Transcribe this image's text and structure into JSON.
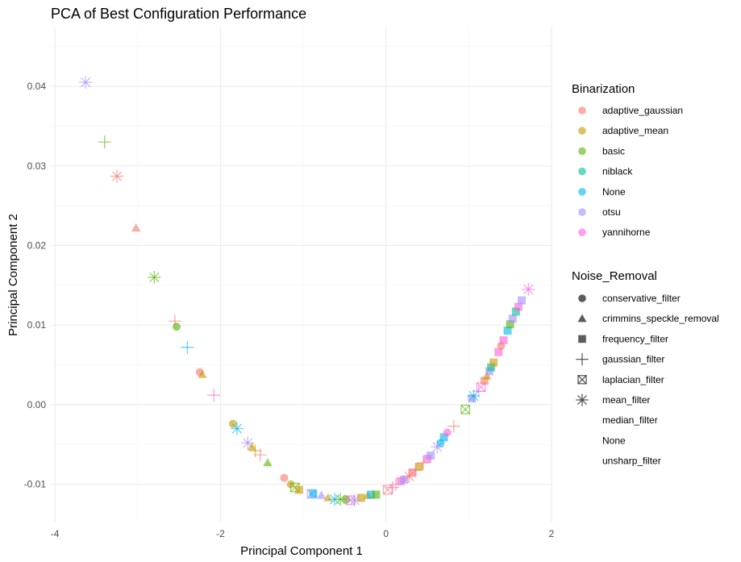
{
  "chart_data": {
    "type": "scatter",
    "title": "PCA of Best Configuration Performance",
    "xlabel": "Principal Component 1",
    "ylabel": "Principal Component 2",
    "xlim": [
      -4.05,
      2.0
    ],
    "ylim": [
      -0.0148,
      0.0475
    ],
    "x_ticks": [
      -4,
      -2,
      0,
      2
    ],
    "x_tick_labels": [
      "-4",
      "-2",
      "0",
      "2"
    ],
    "y_ticks": [
      -0.01,
      0.0,
      0.01,
      0.02,
      0.03,
      0.04
    ],
    "y_tick_labels": [
      "-0.01",
      "0.00",
      "0.01",
      "0.02",
      "0.03",
      "0.04"
    ],
    "grid": true,
    "legend_position": "right",
    "color_legend": {
      "title": "Binarization",
      "items": [
        {
          "label": "adaptive_gaussian",
          "color": "#F8766D"
        },
        {
          "label": "adaptive_mean",
          "color": "#C49A00"
        },
        {
          "label": "basic",
          "color": "#53B400"
        },
        {
          "label": "niblack",
          "color": "#00C094"
        },
        {
          "label": "None",
          "color": "#00B6EB"
        },
        {
          "label": "otsu",
          "color": "#A58AFF"
        },
        {
          "label": "yannihorne",
          "color": "#FB61D7"
        }
      ]
    },
    "shape_legend": {
      "title": "Noise_Removal",
      "items": [
        {
          "label": "conservative_filter",
          "shape": "circle"
        },
        {
          "label": "crimmins_speckle_removal",
          "shape": "triangle"
        },
        {
          "label": "frequency_filter",
          "shape": "square"
        },
        {
          "label": "gaussian_filter",
          "shape": "plus"
        },
        {
          "label": "laplacian_filter",
          "shape": "boxcross"
        },
        {
          "label": "mean_filter",
          "shape": "asterisk"
        },
        {
          "label": "median_filter",
          "shape": "none"
        },
        {
          "label": "None",
          "shape": "none"
        },
        {
          "label": "unsharp_filter",
          "shape": "none"
        }
      ]
    },
    "points": [
      {
        "x": -3.63,
        "y": 0.0405,
        "b": "otsu",
        "n": "mean_filter"
      },
      {
        "x": -3.4,
        "y": 0.033,
        "b": "basic",
        "n": "gaussian_filter"
      },
      {
        "x": -3.25,
        "y": 0.0287,
        "b": "adaptive_gaussian",
        "n": "mean_filter"
      },
      {
        "x": -3.02,
        "y": 0.0222,
        "b": "adaptive_gaussian",
        "n": "crimmins_speckle_removal"
      },
      {
        "x": -2.8,
        "y": 0.016,
        "b": "basic",
        "n": "mean_filter"
      },
      {
        "x": -2.55,
        "y": 0.0105,
        "b": "adaptive_gaussian",
        "n": "gaussian_filter"
      },
      {
        "x": -2.53,
        "y": 0.0098,
        "b": "basic",
        "n": "conservative_filter"
      },
      {
        "x": -2.4,
        "y": 0.0072,
        "b": "None",
        "n": "gaussian_filter"
      },
      {
        "x": -2.25,
        "y": 0.0041,
        "b": "adaptive_gaussian",
        "n": "conservative_filter"
      },
      {
        "x": -2.22,
        "y": 0.0038,
        "b": "adaptive_mean",
        "n": "crimmins_speckle_removal"
      },
      {
        "x": -2.08,
        "y": 0.0012,
        "b": "yannihorne",
        "n": "gaussian_filter"
      },
      {
        "x": -1.85,
        "y": -0.0024,
        "b": "adaptive_mean",
        "n": "conservative_filter"
      },
      {
        "x": -1.8,
        "y": -0.003,
        "b": "None",
        "n": "mean_filter"
      },
      {
        "x": -1.67,
        "y": -0.0048,
        "b": "otsu",
        "n": "mean_filter"
      },
      {
        "x": -1.62,
        "y": -0.0053,
        "b": "adaptive_mean",
        "n": "crimmins_speckle_removal"
      },
      {
        "x": -1.58,
        "y": -0.0058,
        "b": "adaptive_mean",
        "n": "gaussian_filter"
      },
      {
        "x": -1.52,
        "y": -0.0063,
        "b": "adaptive_gaussian",
        "n": "gaussian_filter"
      },
      {
        "x": -1.43,
        "y": -0.0073,
        "b": "basic",
        "n": "crimmins_speckle_removal"
      },
      {
        "x": -1.23,
        "y": -0.0092,
        "b": "adaptive_gaussian",
        "n": "conservative_filter"
      },
      {
        "x": -1.15,
        "y": -0.01,
        "b": "adaptive_mean",
        "n": "conservative_filter"
      },
      {
        "x": -1.1,
        "y": -0.0104,
        "b": "basic",
        "n": "laplacian_filter"
      },
      {
        "x": -1.05,
        "y": -0.0107,
        "b": "adaptive_mean",
        "n": "frequency_filter"
      },
      {
        "x": -0.9,
        "y": -0.0112,
        "b": "otsu",
        "n": "laplacian_filter"
      },
      {
        "x": -0.88,
        "y": -0.0112,
        "b": "None",
        "n": "frequency_filter"
      },
      {
        "x": -0.78,
        "y": -0.0114,
        "b": "otsu",
        "n": "crimmins_speckle_removal"
      },
      {
        "x": -0.7,
        "y": -0.0117,
        "b": "adaptive_mean",
        "n": "crimmins_speckle_removal"
      },
      {
        "x": -0.62,
        "y": -0.0119,
        "b": "None",
        "n": "mean_filter"
      },
      {
        "x": -0.55,
        "y": -0.0119,
        "b": "basic",
        "n": "mean_filter"
      },
      {
        "x": -0.48,
        "y": -0.0119,
        "b": "basic",
        "n": "conservative_filter"
      },
      {
        "x": -0.43,
        "y": -0.012,
        "b": "yannihorne",
        "n": "laplacian_filter"
      },
      {
        "x": -0.38,
        "y": -0.012,
        "b": "otsu",
        "n": "mean_filter"
      },
      {
        "x": -0.3,
        "y": -0.0117,
        "b": "adaptive_mean",
        "n": "frequency_filter"
      },
      {
        "x": -0.22,
        "y": -0.0114,
        "b": "adaptive_mean",
        "n": "crimmins_speckle_removal"
      },
      {
        "x": -0.18,
        "y": -0.0113,
        "b": "None",
        "n": "frequency_filter"
      },
      {
        "x": -0.12,
        "y": -0.0113,
        "b": "basic",
        "n": "frequency_filter"
      },
      {
        "x": 0.02,
        "y": -0.0107,
        "b": "adaptive_gaussian",
        "n": "laplacian_filter"
      },
      {
        "x": 0.08,
        "y": -0.0104,
        "b": "yannihorne",
        "n": "gaussian_filter"
      },
      {
        "x": 0.12,
        "y": -0.01,
        "b": "adaptive_gaussian",
        "n": "gaussian_filter"
      },
      {
        "x": 0.18,
        "y": -0.0096,
        "b": "yannihorne",
        "n": "frequency_filter"
      },
      {
        "x": 0.22,
        "y": -0.0094,
        "b": "otsu",
        "n": "frequency_filter"
      },
      {
        "x": 0.28,
        "y": -0.009,
        "b": "adaptive_gaussian",
        "n": "mean_filter"
      },
      {
        "x": 0.32,
        "y": -0.0085,
        "b": "adaptive_gaussian",
        "n": "frequency_filter"
      },
      {
        "x": 0.36,
        "y": -0.0082,
        "b": "yannihorne",
        "n": "gaussian_filter"
      },
      {
        "x": 0.4,
        "y": -0.0078,
        "b": "adaptive_mean",
        "n": "frequency_filter"
      },
      {
        "x": 0.45,
        "y": -0.0073,
        "b": "adaptive_gaussian",
        "n": "gaussian_filter"
      },
      {
        "x": 0.5,
        "y": -0.0068,
        "b": "yannihorne",
        "n": "frequency_filter"
      },
      {
        "x": 0.54,
        "y": -0.0064,
        "b": "otsu",
        "n": "frequency_filter"
      },
      {
        "x": 0.62,
        "y": -0.0053,
        "b": "otsu",
        "n": "mean_filter"
      },
      {
        "x": 0.66,
        "y": -0.0048,
        "b": "None",
        "n": "conservative_filter"
      },
      {
        "x": 0.7,
        "y": -0.0041,
        "b": "None",
        "n": "frequency_filter"
      },
      {
        "x": 0.74,
        "y": -0.0035,
        "b": "yannihorne",
        "n": "conservative_filter"
      },
      {
        "x": 0.82,
        "y": -0.0027,
        "b": "adaptive_gaussian",
        "n": "gaussian_filter"
      },
      {
        "x": 0.96,
        "y": -0.0006,
        "b": "basic",
        "n": "laplacian_filter"
      },
      {
        "x": 1.04,
        "y": 0.0008,
        "b": "otsu",
        "n": "frequency_filter"
      },
      {
        "x": 1.06,
        "y": 0.0011,
        "b": "None",
        "n": "mean_filter"
      },
      {
        "x": 1.12,
        "y": 0.0017,
        "b": "otsu",
        "n": "gaussian_filter"
      },
      {
        "x": 1.15,
        "y": 0.0022,
        "b": "yannihorne",
        "n": "laplacian_filter"
      },
      {
        "x": 1.19,
        "y": 0.003,
        "b": "adaptive_gaussian",
        "n": "frequency_filter"
      },
      {
        "x": 1.22,
        "y": 0.0036,
        "b": "adaptive_mean",
        "n": "crimmins_speckle_removal"
      },
      {
        "x": 1.25,
        "y": 0.0042,
        "b": "otsu",
        "n": "frequency_filter"
      },
      {
        "x": 1.27,
        "y": 0.0047,
        "b": "niblack",
        "n": "frequency_filter"
      },
      {
        "x": 1.3,
        "y": 0.0053,
        "b": "adaptive_mean",
        "n": "frequency_filter"
      },
      {
        "x": 1.36,
        "y": 0.0066,
        "b": "yannihorne",
        "n": "frequency_filter"
      },
      {
        "x": 1.39,
        "y": 0.0074,
        "b": "adaptive_gaussian",
        "n": "conservative_filter"
      },
      {
        "x": 1.42,
        "y": 0.0081,
        "b": "yannihorne",
        "n": "frequency_filter"
      },
      {
        "x": 1.47,
        "y": 0.0093,
        "b": "None",
        "n": "frequency_filter"
      },
      {
        "x": 1.5,
        "y": 0.0101,
        "b": "basic",
        "n": "frequency_filter"
      },
      {
        "x": 1.53,
        "y": 0.0108,
        "b": "otsu",
        "n": "frequency_filter"
      },
      {
        "x": 1.57,
        "y": 0.0117,
        "b": "niblack",
        "n": "frequency_filter"
      },
      {
        "x": 1.6,
        "y": 0.0123,
        "b": "yannihorne",
        "n": "frequency_filter"
      },
      {
        "x": 1.64,
        "y": 0.0131,
        "b": "otsu",
        "n": "frequency_filter"
      },
      {
        "x": 1.72,
        "y": 0.0145,
        "b": "yannihorne",
        "n": "mean_filter"
      }
    ]
  }
}
